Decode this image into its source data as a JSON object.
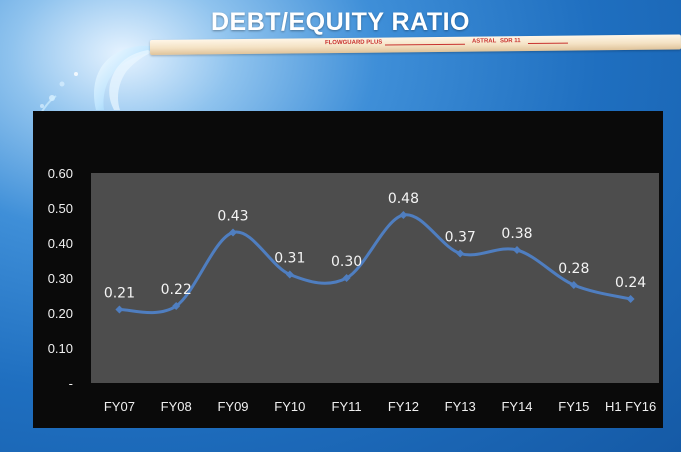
{
  "slide": {
    "title": "DEBT/EQUITY RATIO",
    "pipe_brand": "FLOWGUARD PLUS",
    "pipe_maker": "ASTRAL",
    "pipe_sdr": "SDR 11"
  },
  "chart_data": {
    "type": "line",
    "title": "",
    "xlabel": "",
    "ylabel": "",
    "categories": [
      "FY07",
      "FY08",
      "FY09",
      "FY10",
      "FY11",
      "FY12",
      "FY13",
      "FY14",
      "FY15",
      "H1 FY16"
    ],
    "values": [
      0.21,
      0.22,
      0.43,
      0.31,
      0.3,
      0.48,
      0.37,
      0.38,
      0.28,
      0.24
    ],
    "data_labels": [
      "0.21",
      "0.22",
      "0.43",
      "0.31",
      "0.30",
      "0.48",
      "0.37",
      "0.38",
      "0.28",
      "0.24"
    ],
    "ylim": [
      0,
      0.6
    ],
    "yticks": [
      "-",
      "0.10",
      "0.20",
      "0.30",
      "0.40",
      "0.50",
      "0.60"
    ],
    "smooth": true,
    "legend": false,
    "grid": false,
    "colors": {
      "line": "#4f7ec0",
      "marker": "#4f7ec0",
      "plot_background": "#4d4d4d",
      "panel_background": "#0a0a0a",
      "text": "#f0f0f0"
    }
  }
}
